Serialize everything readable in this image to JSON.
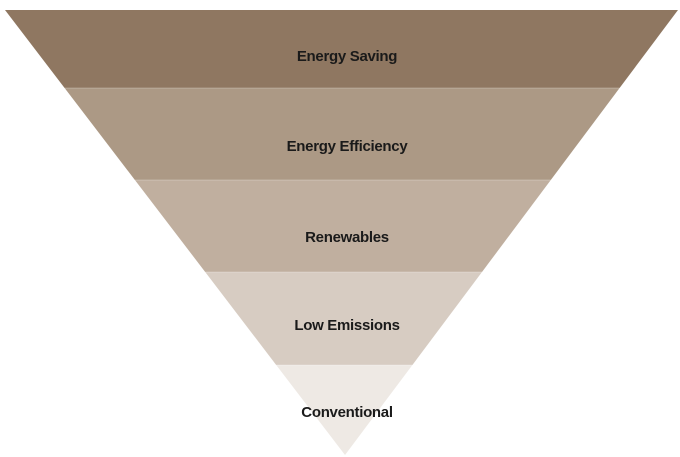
{
  "levels": [
    "Energy Saving",
    "Energy Efficiency",
    "Renewables",
    "Low Emissions",
    "Conventional"
  ]
}
